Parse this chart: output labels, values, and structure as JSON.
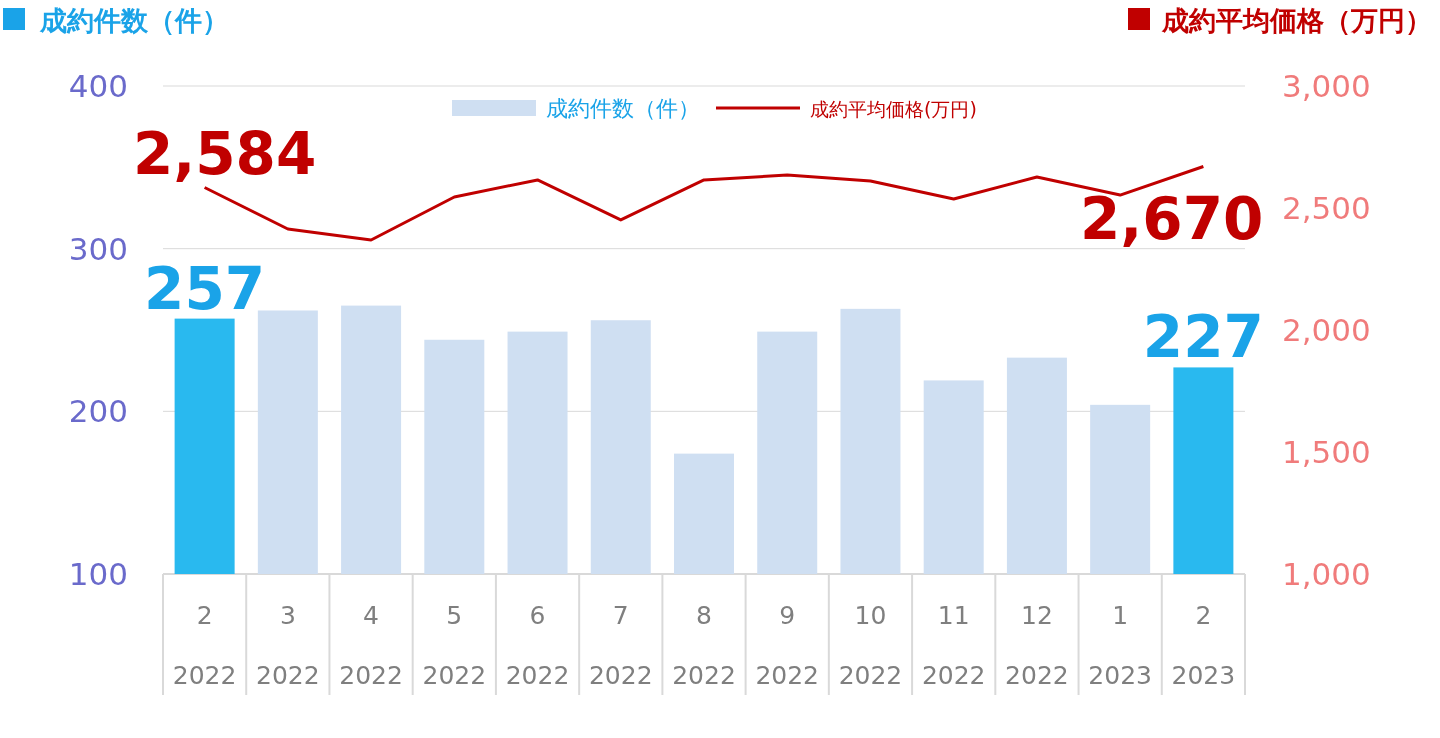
{
  "chart_data": {
    "type": "bar",
    "ylabel": "成約件数（件）",
    "y2label": "成約平均価格（万円）",
    "categories": [
      "2\n2022",
      "3\n2022",
      "4\n2022",
      "5\n2022",
      "6\n2022",
      "7\n2022",
      "8\n2022",
      "9\n2022",
      "10\n2022",
      "11\n2022",
      "12\n2022",
      "1\n2023",
      "2\n2023"
    ],
    "series": [
      {
        "name": "成約件数（件）",
        "color": "#cfdff2",
        "colors": [
          "#29b9ef",
          "#cfdff2",
          "#cfdff2",
          "#cfdff2",
          "#cfdff2",
          "#cfdff2",
          "#cfdff2",
          "#cfdff2",
          "#cfdff2",
          "#cfdff2",
          "#cfdff2",
          "#cfdff2",
          "#29b9ef"
        ],
        "values": [
          257,
          262,
          265,
          244,
          249,
          256,
          174,
          249,
          263,
          219,
          233,
          204,
          227
        ],
        "value_labels": [
          "257",
          null,
          null,
          null,
          null,
          null,
          null,
          null,
          null,
          null,
          null,
          null,
          "227"
        ]
      },
      {
        "name": "成約平均価格(万円)",
        "type": "line",
        "axis": "y2",
        "color": "#c00000",
        "values": [
          2584,
          2414,
          2369,
          2545,
          2615,
          2451,
          2615,
          2635,
          2611,
          2537,
          2627,
          2553,
          2670
        ],
        "value_labels": [
          "2,584",
          null,
          null,
          null,
          null,
          null,
          null,
          null,
          null,
          null,
          null,
          null,
          "2,670"
        ]
      }
    ],
    "ylim": [
      100,
      400
    ],
    "yticks": [
      100,
      200,
      300,
      400
    ],
    "y2lim": [
      1000,
      3000
    ],
    "y2ticks": [
      {
        "value": 1000,
        "label": "1,000"
      },
      {
        "value": 1500,
        "label": "1,500"
      },
      {
        "value": 2000,
        "label": "2,000"
      },
      {
        "value": 2500,
        "label": "2,500"
      },
      {
        "value": 3000,
        "label": "3,000"
      }
    ],
    "grid": "y",
    "legend": "top"
  }
}
